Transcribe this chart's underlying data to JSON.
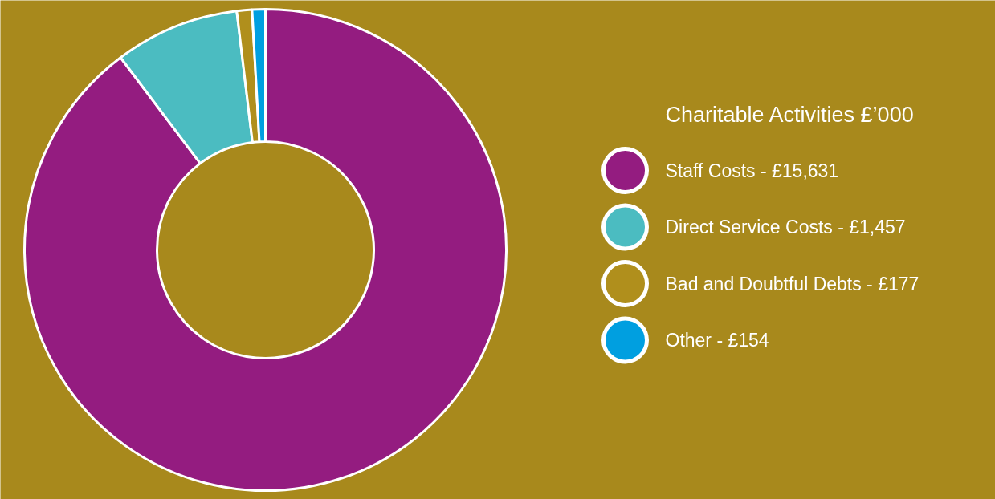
{
  "chart_data": {
    "type": "donut",
    "legend_title": "Charitable Activities £’000",
    "categories": [
      "Staff Costs",
      "Direct Service Costs",
      "Bad and Doubtful Debts",
      "Other"
    ],
    "value_labels": [
      "£15,631",
      "£1,457",
      "£177",
      "£154"
    ],
    "values": [
      15631,
      1457,
      177,
      154
    ],
    "colors": [
      "#941c80",
      "#4bbcc1",
      "#b08f1c",
      "#009fe0"
    ],
    "legend": "right"
  }
}
